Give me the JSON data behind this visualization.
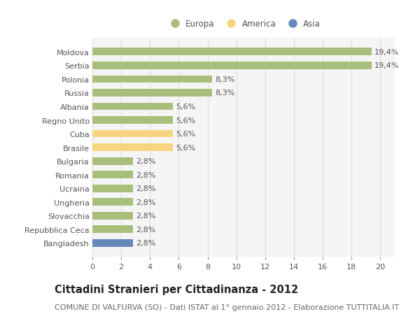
{
  "categories": [
    "Bangladesh",
    "Repubblica Ceca",
    "Slovacchia",
    "Ungheria",
    "Ucraina",
    "Romania",
    "Bulgaria",
    "Brasile",
    "Cuba",
    "Regno Unito",
    "Albania",
    "Russia",
    "Polonia",
    "Serbia",
    "Moldova"
  ],
  "values": [
    2.8,
    2.8,
    2.8,
    2.8,
    2.8,
    2.8,
    2.8,
    5.6,
    5.6,
    5.6,
    5.6,
    8.3,
    8.3,
    19.4,
    19.4
  ],
  "colors": [
    "#6688bb",
    "#a8bf7c",
    "#a8bf7c",
    "#a8bf7c",
    "#a8bf7c",
    "#a8bf7c",
    "#a8bf7c",
    "#f7d580",
    "#f7d580",
    "#a8bf7c",
    "#a8bf7c",
    "#a8bf7c",
    "#a8bf7c",
    "#a8bf7c",
    "#a8bf7c"
  ],
  "labels": [
    "2,8%",
    "2,8%",
    "2,8%",
    "2,8%",
    "2,8%",
    "2,8%",
    "2,8%",
    "5,6%",
    "5,6%",
    "5,6%",
    "5,6%",
    "8,3%",
    "8,3%",
    "19,4%",
    "19,4%"
  ],
  "legend_labels": [
    "Europa",
    "America",
    "Asia"
  ],
  "legend_colors": [
    "#a8bf7c",
    "#f7d580",
    "#6688bb"
  ],
  "title": "Cittadini Stranieri per Cittadinanza - 2012",
  "subtitle": "COMUNE DI VALFURVA (SO) - Dati ISTAT al 1° gennaio 2012 - Elaborazione TUTTITALIA.IT",
  "xlim": [
    0,
    21
  ],
  "xticks": [
    0,
    2,
    4,
    6,
    8,
    10,
    12,
    14,
    16,
    18,
    20
  ],
  "background_color": "#ffffff",
  "plot_bg_color": "#f5f5f5",
  "grid_color": "#dddddd",
  "bar_height": 0.55,
  "label_fontsize": 8.0,
  "title_fontsize": 10.5,
  "subtitle_fontsize": 8.0
}
